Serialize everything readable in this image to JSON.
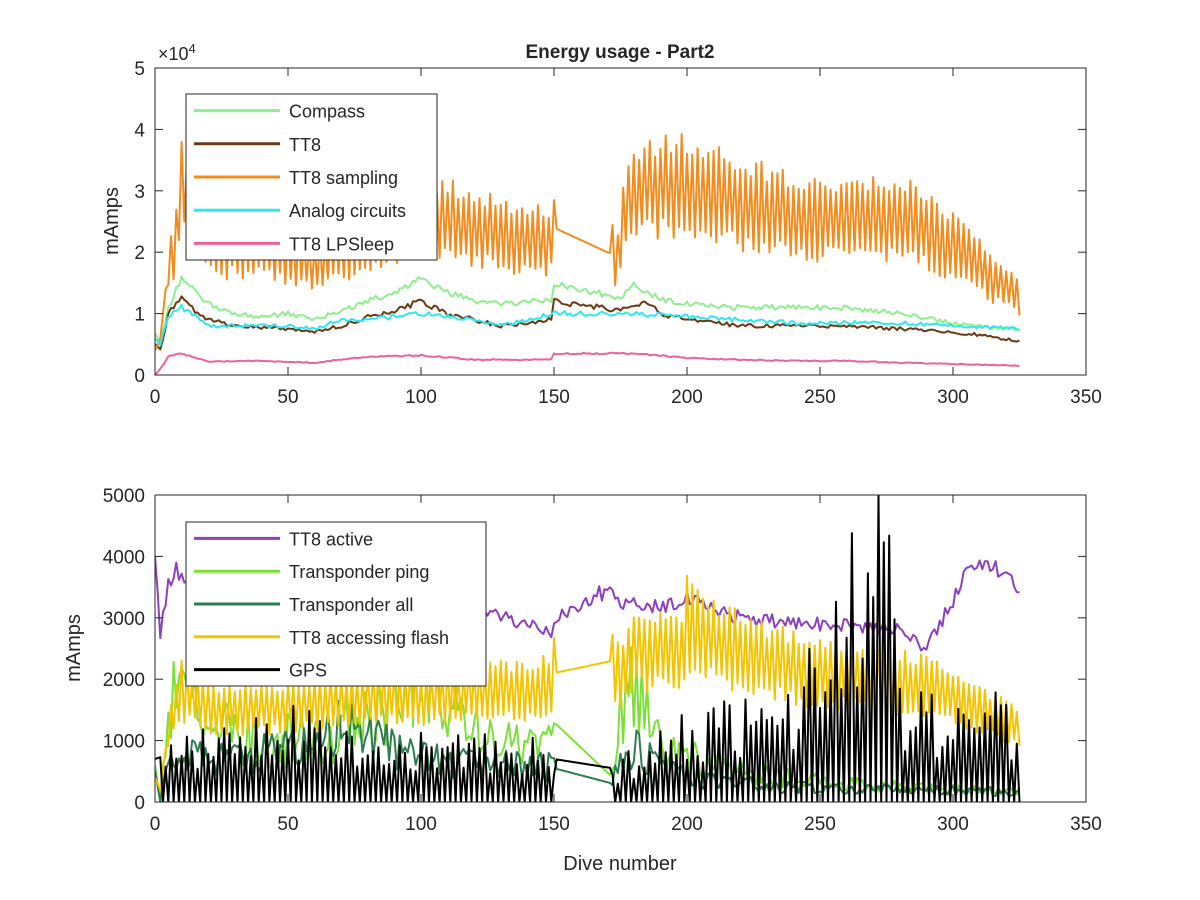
{
  "figure": {
    "background": "#ffffff",
    "axis_color": "#262626",
    "xlabel": "Dive number"
  },
  "chart_data": [
    {
      "type": "line",
      "title": "Energy usage - Part2",
      "xlabel": "",
      "ylabel": "mAmps",
      "xlim": [
        0,
        350
      ],
      "ylim": [
        0,
        50000
      ],
      "xticks": [
        0,
        50,
        100,
        150,
        200,
        250,
        300,
        350
      ],
      "yticks": [
        0,
        10000,
        20000,
        30000,
        40000,
        50000
      ],
      "ytick_labels": [
        "0",
        "1",
        "2",
        "3",
        "4",
        "5"
      ],
      "exponent_label": "×10",
      "exponent_power": "4",
      "grid": false,
      "legend_position": "top-left",
      "series": [
        {
          "name": "Compass",
          "color": "#90ee90",
          "pattern": "smooth",
          "points": [
            [
              0,
              7000
            ],
            [
              2,
              5000
            ],
            [
              5,
              11000
            ],
            [
              10,
              16000
            ],
            [
              15,
              13500
            ],
            [
              20,
              11500
            ],
            [
              30,
              10000
            ],
            [
              40,
              9500
            ],
            [
              50,
              10000
            ],
            [
              60,
              9000
            ],
            [
              70,
              10500
            ],
            [
              80,
              12000
            ],
            [
              90,
              13500
            ],
            [
              100,
              15500
            ],
            [
              110,
              13500
            ],
            [
              120,
              12000
            ],
            [
              130,
              11500
            ],
            [
              140,
              12000
            ],
            [
              149,
              12000
            ],
            [
              150,
              15000
            ],
            [
              175,
              12500
            ],
            [
              180,
              14500
            ],
            [
              190,
              12500
            ],
            [
              200,
              11500
            ],
            [
              220,
              11000
            ],
            [
              240,
              11000
            ],
            [
              260,
              11000
            ],
            [
              280,
              10000
            ],
            [
              300,
              8500
            ],
            [
              310,
              8000
            ],
            [
              325,
              7500
            ]
          ]
        },
        {
          "name": "TT8",
          "color": "#6b3a14",
          "pattern": "smooth",
          "points": [
            [
              0,
              5000
            ],
            [
              2,
              4000
            ],
            [
              5,
              10000
            ],
            [
              10,
              12500
            ],
            [
              15,
              10500
            ],
            [
              20,
              9000
            ],
            [
              30,
              8000
            ],
            [
              40,
              7800
            ],
            [
              50,
              7500
            ],
            [
              60,
              7000
            ],
            [
              70,
              8000
            ],
            [
              80,
              9500
            ],
            [
              90,
              10500
            ],
            [
              100,
              12000
            ],
            [
              110,
              10000
            ],
            [
              120,
              9000
            ],
            [
              130,
              8000
            ],
            [
              140,
              8500
            ],
            [
              149,
              9000
            ],
            [
              150,
              12000
            ],
            [
              175,
              10500
            ],
            [
              185,
              12000
            ],
            [
              190,
              10000
            ],
            [
              200,
              9000
            ],
            [
              220,
              8000
            ],
            [
              240,
              8000
            ],
            [
              260,
              8000
            ],
            [
              280,
              7500
            ],
            [
              300,
              7000
            ],
            [
              310,
              6500
            ],
            [
              325,
              5500
            ]
          ]
        },
        {
          "name": "TT8 sampling",
          "color": "#f28c1e",
          "pattern": "oscillating",
          "points": [
            [
              0,
              4000
            ],
            [
              2,
              6000
            ],
            [
              5,
              18000
            ],
            [
              8,
              22000
            ],
            [
              10,
              32000
            ],
            [
              20,
              22000
            ],
            [
              40,
              21000
            ],
            [
              60,
              18000
            ],
            [
              80,
              23000
            ],
            [
              100,
              26000
            ],
            [
              120,
              24000
            ],
            [
              140,
              22000
            ],
            [
              149,
              22000
            ],
            [
              150,
              24000
            ],
            [
              170,
              20000
            ],
            [
              174,
              19500
            ],
            [
              176,
              25000
            ],
            [
              180,
              30000
            ],
            [
              200,
              31000
            ],
            [
              220,
              28000
            ],
            [
              240,
              26000
            ],
            [
              260,
              25000
            ],
            [
              280,
              26000
            ],
            [
              300,
              21000
            ],
            [
              315,
              16000
            ],
            [
              325,
              13000
            ]
          ]
        },
        {
          "name": "Analog circuits",
          "color": "#2ee8ee",
          "pattern": "smooth",
          "points": [
            [
              0,
              6000
            ],
            [
              2,
              5000
            ],
            [
              5,
              9500
            ],
            [
              10,
              11000
            ],
            [
              20,
              8000
            ],
            [
              30,
              8000
            ],
            [
              50,
              8000
            ],
            [
              60,
              7500
            ],
            [
              70,
              9000
            ],
            [
              80,
              9000
            ],
            [
              100,
              10000
            ],
            [
              120,
              9000
            ],
            [
              130,
              8000
            ],
            [
              140,
              9000
            ],
            [
              150,
              10000
            ],
            [
              170,
              10000
            ],
            [
              180,
              10000
            ],
            [
              200,
              9500
            ],
            [
              220,
              9000
            ],
            [
              240,
              8500
            ],
            [
              260,
              8500
            ],
            [
              280,
              8500
            ],
            [
              300,
              8000
            ],
            [
              325,
              7500
            ]
          ]
        },
        {
          "name": "TT8 LPSleep",
          "color": "#e8649c",
          "pattern": "smooth",
          "points": [
            [
              0,
              0
            ],
            [
              2,
              1000
            ],
            [
              5,
              3000
            ],
            [
              10,
              3500
            ],
            [
              20,
              2200
            ],
            [
              40,
              2300
            ],
            [
              60,
              2000
            ],
            [
              80,
              3000
            ],
            [
              100,
              3200
            ],
            [
              120,
              2500
            ],
            [
              140,
              2500
            ],
            [
              149,
              2600
            ],
            [
              150,
              3500
            ],
            [
              175,
              3500
            ],
            [
              180,
              3500
            ],
            [
              200,
              2800
            ],
            [
              220,
              2500
            ],
            [
              240,
              2300
            ],
            [
              260,
              2300
            ],
            [
              280,
              2000
            ],
            [
              300,
              1800
            ],
            [
              325,
              1500
            ]
          ]
        }
      ]
    },
    {
      "type": "line",
      "title": "",
      "xlabel": "Dive number",
      "ylabel": "mAmps",
      "xlim": [
        0,
        350
      ],
      "ylim": [
        0,
        5000
      ],
      "xticks": [
        0,
        50,
        100,
        150,
        200,
        250,
        300,
        350
      ],
      "yticks": [
        0,
        1000,
        2000,
        3000,
        4000,
        5000
      ],
      "ytick_labels": [
        "0",
        "1000",
        "2000",
        "3000",
        "4000",
        "5000"
      ],
      "grid": false,
      "legend_position": "top-left",
      "series": [
        {
          "name": "TT8 active",
          "color": "#8e3fc0",
          "pattern": "smooth",
          "points": [
            [
              0,
              4100
            ],
            [
              2,
              2700
            ],
            [
              5,
              3600
            ],
            [
              8,
              3800
            ],
            [
              12,
              3600
            ],
            [
              20,
              3300
            ],
            [
              40,
              3200
            ],
            [
              60,
              3100
            ],
            [
              80,
              3000
            ],
            [
              100,
              3000
            ],
            [
              120,
              3100
            ],
            [
              140,
              2900
            ],
            [
              149,
              2700
            ],
            [
              150,
              3000
            ],
            [
              172,
              3500
            ],
            [
              175,
              3200
            ],
            [
              190,
              3200
            ],
            [
              200,
              3300
            ],
            [
              220,
              3000
            ],
            [
              240,
              2900
            ],
            [
              260,
              2900
            ],
            [
              280,
              2800
            ],
            [
              290,
              2500
            ],
            [
              300,
              3300
            ],
            [
              305,
              3800
            ],
            [
              315,
              3900
            ],
            [
              325,
              3500
            ]
          ]
        },
        {
          "name": "Transponder ping",
          "color": "#7be03a",
          "pattern": "spiky",
          "points": [
            [
              0,
              600
            ],
            [
              2,
              0
            ],
            [
              5,
              1500
            ],
            [
              10,
              1800
            ],
            [
              20,
              1200
            ],
            [
              40,
              1000
            ],
            [
              60,
              1000
            ],
            [
              80,
              1300
            ],
            [
              90,
              1800
            ],
            [
              100,
              2300
            ],
            [
              110,
              1500
            ],
            [
              120,
              1200
            ],
            [
              130,
              1100
            ],
            [
              140,
              900
            ],
            [
              149,
              900
            ],
            [
              150,
              1300
            ],
            [
              172,
              400
            ],
            [
              175,
              1500
            ],
            [
              180,
              1800
            ],
            [
              190,
              900
            ],
            [
              200,
              700
            ],
            [
              220,
              500
            ],
            [
              240,
              400
            ],
            [
              260,
              300
            ],
            [
              280,
              250
            ],
            [
              300,
              200
            ],
            [
              325,
              150
            ]
          ]
        },
        {
          "name": "Transponder all",
          "color": "#2e7d4f",
          "pattern": "spiky",
          "points": [
            [
              0,
              500
            ],
            [
              2,
              0
            ],
            [
              5,
              600
            ],
            [
              10,
              700
            ],
            [
              20,
              700
            ],
            [
              40,
              800
            ],
            [
              60,
              900
            ],
            [
              70,
              1200
            ],
            [
              80,
              1100
            ],
            [
              90,
              900
            ],
            [
              100,
              700
            ],
            [
              120,
              600
            ],
            [
              140,
              600
            ],
            [
              149,
              600
            ],
            [
              150,
              550
            ],
            [
              172,
              300
            ],
            [
              175,
              800
            ],
            [
              180,
              1000
            ],
            [
              190,
              500
            ],
            [
              200,
              400
            ],
            [
              220,
              300
            ],
            [
              240,
              250
            ],
            [
              260,
              200
            ],
            [
              280,
              200
            ],
            [
              300,
              200
            ],
            [
              325,
              150
            ]
          ]
        },
        {
          "name": "TT8 accessing flash",
          "color": "#f5c400",
          "pattern": "oscillating",
          "points": [
            [
              0,
              400
            ],
            [
              2,
              200
            ],
            [
              5,
              1200
            ],
            [
              10,
              1800
            ],
            [
              20,
              1500
            ],
            [
              40,
              1500
            ],
            [
              60,
              1600
            ],
            [
              80,
              1700
            ],
            [
              100,
              1700
            ],
            [
              120,
              1800
            ],
            [
              140,
              1800
            ],
            [
              149,
              1900
            ],
            [
              150,
              2100
            ],
            [
              172,
              2300
            ],
            [
              175,
              2000
            ],
            [
              180,
              2500
            ],
            [
              199,
              2400
            ],
            [
              200,
              2900
            ],
            [
              210,
              2600
            ],
            [
              230,
              2300
            ],
            [
              250,
              2100
            ],
            [
              270,
              2000
            ],
            [
              290,
              1900
            ],
            [
              300,
              1700
            ],
            [
              310,
              1500
            ],
            [
              325,
              1200
            ]
          ]
        },
        {
          "name": "GPS",
          "color": "#000000",
          "pattern": "spiky_gps",
          "points": [
            [
              0,
              700
            ],
            [
              40,
              1300
            ],
            [
              80,
              1000
            ],
            [
              120,
              900
            ],
            [
              149,
              800
            ],
            [
              150,
              700
            ],
            [
              172,
              550
            ],
            [
              175,
              600
            ],
            [
              200,
              1200
            ],
            [
              240,
              1400
            ],
            [
              275,
              4700
            ],
            [
              280,
              1600
            ],
            [
              300,
              1300
            ],
            [
              320,
              1500
            ],
            [
              325,
              1000
            ]
          ]
        }
      ]
    }
  ]
}
